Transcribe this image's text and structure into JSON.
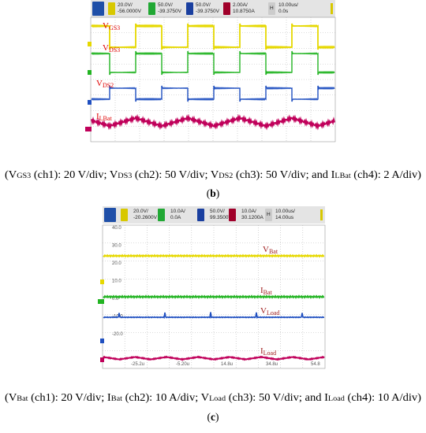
{
  "panel_b": {
    "channels": [
      {
        "scale": "20.0V/",
        "offset": "-56.0000V"
      },
      {
        "scale": "50.0V/",
        "offset": "-39.3750V"
      },
      {
        "scale": "50.0V/",
        "offset": "-39.3750V"
      },
      {
        "scale": "2.00A/",
        "offset": "10.8750A"
      }
    ],
    "timebase": {
      "marker": "H",
      "scale": "10.00us/",
      "offset": "0.0s"
    },
    "traces": [
      {
        "main": "V",
        "sub": "GS3"
      },
      {
        "main": "V",
        "sub": "DS3"
      },
      {
        "main": "V",
        "sub": "DS2"
      },
      {
        "main": "I",
        "sub": "LBat"
      }
    ],
    "caption_parts": [
      "(V",
      "GS3",
      " (ch1): 20 V/div; V",
      "DS3",
      " (ch2): 50 V/div; V",
      "DS2",
      " (ch3): 50 V/div; and I",
      "LBat",
      " (ch4): 2 A/div)"
    ],
    "label_parts": [
      "(",
      "b",
      ")"
    ]
  },
  "panel_c": {
    "channels": [
      {
        "scale": "20.0V/",
        "offset": "-20.2600V"
      },
      {
        "scale": "10.0A/",
        "offset": "0.0A"
      },
      {
        "scale": "50.0V/",
        "offset": "99.3500V"
      },
      {
        "scale": "10.0A/",
        "offset": "30.1200A"
      }
    ],
    "timebase": {
      "marker": "H",
      "scale": "10.00us/",
      "offset": "14.00us"
    },
    "y_axis_labels": [
      "40.0",
      "30.0",
      "20.0",
      "10.0",
      "0.0",
      "-10.0",
      "-20.0"
    ],
    "x_axis_labels": [
      "-25.2u",
      "-5.20u",
      "14.8u",
      "34.8u",
      "54.8"
    ],
    "traces": [
      {
        "main": "V",
        "sub": "Bat"
      },
      {
        "main": "I",
        "sub": "Bat"
      },
      {
        "main": "V",
        "sub": "Load"
      },
      {
        "main": "I",
        "sub": "Load"
      }
    ],
    "caption_parts": [
      "(V",
      "Bat",
      " (ch1): 20 V/div; I",
      "Bat",
      " (ch2): 10 A/div; V",
      "Load",
      " (ch3): 50 V/div; and I",
      "Load",
      " (ch4): 10 A/div)"
    ],
    "label_parts": [
      "(",
      "c",
      ")"
    ]
  }
}
